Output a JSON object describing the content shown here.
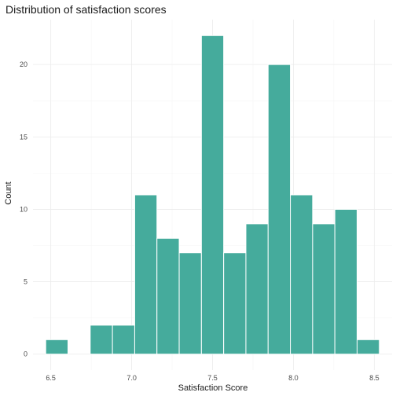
{
  "chart_data": {
    "type": "bar",
    "title": "Distribution of satisfaction scores",
    "xlabel": "Satisfaction Score",
    "ylabel": "Count",
    "bar_color": "#45AB9C",
    "bin_width": 0.1375,
    "bins": [
      {
        "x": 6.5375,
        "count": 1
      },
      {
        "x": 6.675,
        "count": 0
      },
      {
        "x": 6.8125,
        "count": 2
      },
      {
        "x": 6.95,
        "count": 2
      },
      {
        "x": 7.0875,
        "count": 11
      },
      {
        "x": 7.225,
        "count": 8
      },
      {
        "x": 7.3625,
        "count": 7
      },
      {
        "x": 7.5,
        "count": 22
      },
      {
        "x": 7.6375,
        "count": 7
      },
      {
        "x": 7.775,
        "count": 9
      },
      {
        "x": 7.9125,
        "count": 20
      },
      {
        "x": 8.05,
        "count": 11
      },
      {
        "x": 8.1875,
        "count": 9
      },
      {
        "x": 8.325,
        "count": 10
      },
      {
        "x": 8.4625,
        "count": 1
      }
    ],
    "xlim": [
      6.39,
      8.61
    ],
    "ylim": [
      -1.1,
      23.1
    ],
    "x_ticks": [
      {
        "value": 6.5,
        "label": "6.5"
      },
      {
        "value": 7.0,
        "label": "7.0"
      },
      {
        "value": 7.5,
        "label": "7.5"
      },
      {
        "value": 8.0,
        "label": "8.0"
      },
      {
        "value": 8.5,
        "label": "8.5"
      }
    ],
    "y_ticks": [
      {
        "value": 0,
        "label": "0"
      },
      {
        "value": 5,
        "label": "5"
      },
      {
        "value": 10,
        "label": "10"
      },
      {
        "value": 15,
        "label": "15"
      },
      {
        "value": 20,
        "label": "20"
      }
    ],
    "grid": true,
    "legend": false
  }
}
